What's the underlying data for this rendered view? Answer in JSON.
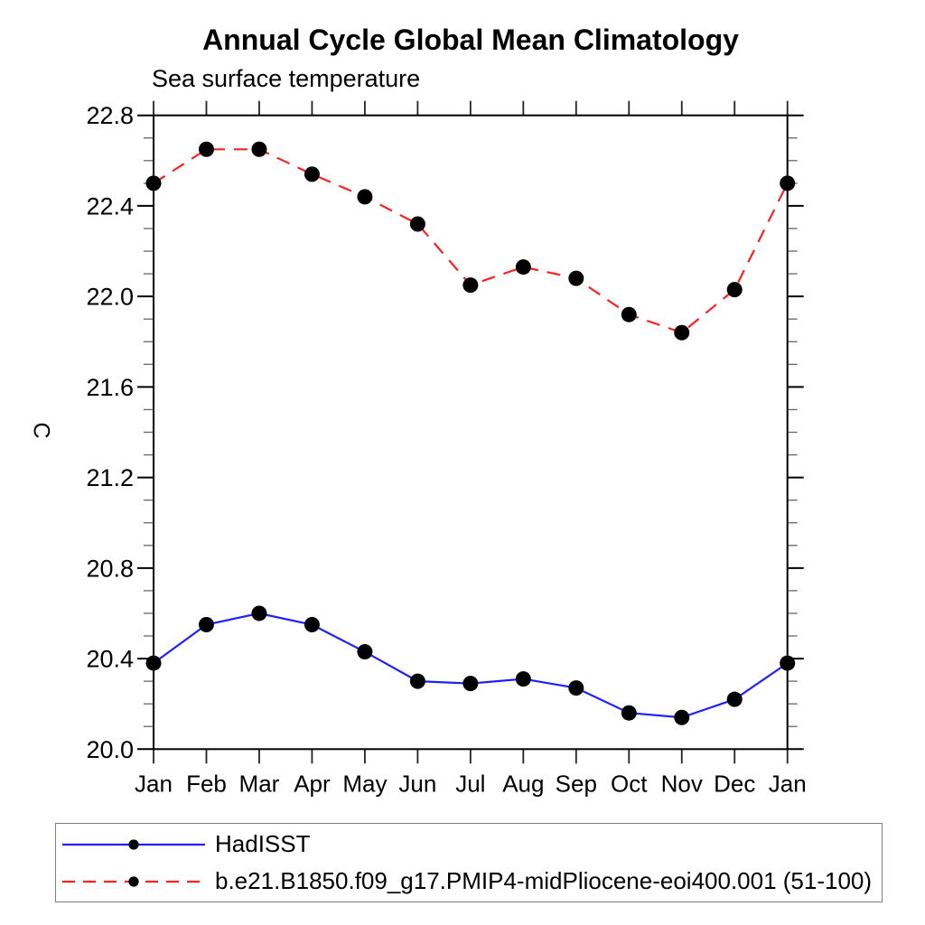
{
  "title": "Annual Cycle Global Mean Climatology",
  "subtitle": "Sea surface temperature",
  "ylabel": "C",
  "chart_data": {
    "type": "line",
    "categories": [
      "Jan",
      "Feb",
      "Mar",
      "Apr",
      "May",
      "Jun",
      "Jul",
      "Aug",
      "Sep",
      "Oct",
      "Nov",
      "Dec",
      "Jan"
    ],
    "ylim": [
      20.0,
      22.8
    ],
    "ytick_major_interval": 0.4,
    "ytick_minor_interval": 0.1,
    "ytick_labels": [
      "20.0",
      "20.4",
      "20.8",
      "21.2",
      "21.6",
      "22.0",
      "22.4",
      "22.8"
    ],
    "grid": false,
    "legend_position": "bottom-left-box",
    "marker": "filled-circle",
    "marker_color": "#000000",
    "series": [
      {
        "name": "HadISST",
        "color": "#2020ff",
        "line_style": "solid",
        "values": [
          20.38,
          20.55,
          20.6,
          20.55,
          20.43,
          20.3,
          20.29,
          20.31,
          20.27,
          20.16,
          20.14,
          20.22,
          20.38
        ]
      },
      {
        "name": "b.e21.B1850.f09_g17.PMIP4-midPliocene-eoi400.001 (51-100)",
        "color": "#f82222",
        "line_style": "dashed",
        "values": [
          22.5,
          22.65,
          22.65,
          22.54,
          22.44,
          22.32,
          22.05,
          22.13,
          22.08,
          21.92,
          21.84,
          22.03,
          22.5
        ]
      }
    ]
  }
}
